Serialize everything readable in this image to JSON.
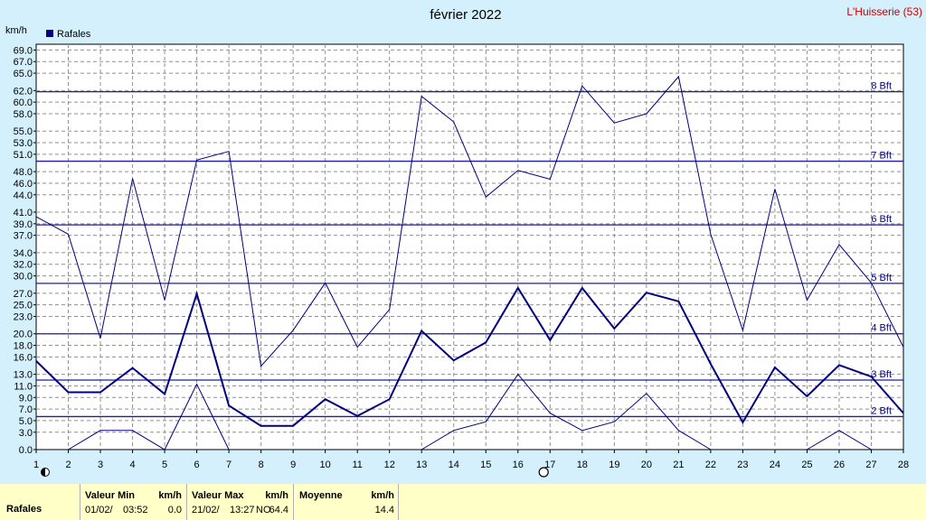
{
  "chart_data": {
    "type": "line",
    "title": "février 2022",
    "station": "L'Huisserie (53)",
    "ylabel": "km/h",
    "legend": [
      {
        "name": "Rafales",
        "color": "#000080"
      }
    ],
    "legend_position": "top-left",
    "ylim": [
      0,
      70
    ],
    "yticks": [
      "0.0",
      "3.0",
      "5.0",
      "7.0",
      "9.0",
      "11.0",
      "13.0",
      "16.0",
      "18.0",
      "20.0",
      "23.0",
      "25.0",
      "27.0",
      "30.0",
      "32.0",
      "34.0",
      "37.0",
      "39.0",
      "41.0",
      "44.0",
      "46.0",
      "48.0",
      "51.0",
      "53.0",
      "55.0",
      "58.0",
      "60.0",
      "62.0",
      "65.0",
      "67.0",
      "69.0"
    ],
    "x": [
      1,
      2,
      3,
      4,
      5,
      6,
      7,
      8,
      9,
      10,
      11,
      12,
      13,
      14,
      15,
      16,
      17,
      18,
      19,
      20,
      21,
      22,
      23,
      24,
      25,
      26,
      27,
      28
    ],
    "grid": true,
    "beaufort": [
      {
        "label": "2 Bft",
        "value": 5.7
      },
      {
        "label": "3 Bft",
        "value": 12.0
      },
      {
        "label": "4 Bft",
        "value": 20.0
      },
      {
        "label": "5 Bft",
        "value": 28.7
      },
      {
        "label": "6 Bft",
        "value": 38.8
      },
      {
        "label": "7 Bft",
        "value": 49.8
      },
      {
        "label": "8 Bft",
        "value": 61.8
      }
    ],
    "series": [
      {
        "name": "max",
        "width": 1,
        "values": [
          40.2,
          37.2,
          19.2,
          46.8,
          25.8,
          50.0,
          51.5,
          14.4,
          20.6,
          28.8,
          17.7,
          24.2,
          61.0,
          56.6,
          43.6,
          48.2,
          46.7,
          62.8,
          56.4,
          58.0,
          64.4,
          37.2,
          20.6,
          45.0,
          25.8,
          35.4,
          28.8,
          17.7
        ]
      },
      {
        "name": "moyenne",
        "width": 2,
        "values": [
          15.3,
          9.9,
          9.9,
          14.1,
          9.6,
          26.9,
          7.6,
          4.1,
          4.1,
          8.7,
          5.8,
          8.7,
          20.5,
          15.4,
          18.5,
          27.9,
          18.9,
          27.9,
          20.9,
          27.1,
          25.6,
          14.8,
          4.7,
          14.2,
          9.2,
          14.6,
          12.6,
          6.3
        ]
      },
      {
        "name": "min",
        "width": 1,
        "values": [
          null,
          0,
          3.3,
          3.3,
          0,
          11.3,
          0,
          null,
          null,
          null,
          null,
          null,
          0,
          3.3,
          4.8,
          13.0,
          6.3,
          3.3,
          4.8,
          9.7,
          3.3,
          0,
          null,
          null,
          0,
          3.3,
          0,
          null
        ]
      }
    ],
    "markers": [
      {
        "x": 1,
        "symbol": "new-moon"
      },
      {
        "x": 16.8,
        "symbol": "full-moon"
      }
    ]
  },
  "footer": {
    "row_label": "Rafales",
    "min": {
      "header": "Valeur Min",
      "unit": "km/h",
      "date": "01/02/",
      "time": "03:52",
      "value": "0.0"
    },
    "max": {
      "header": "Valeur Max",
      "unit": "km/h",
      "date": "21/02/",
      "time": "13:27",
      "dir": "NO",
      "value": "64.4"
    },
    "avg": {
      "header": "Moyenne",
      "unit": "km/h",
      "value": "14.4"
    }
  }
}
